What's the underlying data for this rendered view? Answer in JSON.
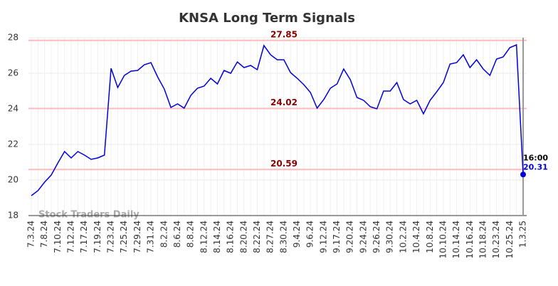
{
  "chart_data": {
    "type": "line",
    "title": "KNSA Long Term Signals",
    "categories": [
      "7.3.24",
      null,
      "7.8.24",
      null,
      "7.10.24",
      null,
      "7.12.24",
      null,
      "7.17.24",
      null,
      "7.19.24",
      null,
      "7.23.24",
      null,
      "7.25.24",
      null,
      "7.29.24",
      null,
      "7.31.24",
      null,
      "8.2.24",
      null,
      "8.6.24",
      null,
      "8.8.24",
      null,
      "8.12.24",
      null,
      "8.14.24",
      null,
      "8.16.24",
      null,
      "8.20.24",
      null,
      "8.22.24",
      null,
      "8.27.24",
      null,
      "8.30.24",
      null,
      "9.4.24",
      null,
      "9.6.24",
      null,
      "9.12.24",
      null,
      "9.17.24",
      null,
      "9.20.24",
      null,
      "9.24.24",
      null,
      "9.26.24",
      null,
      "9.30.24",
      null,
      "10.2.24",
      null,
      "10.4.24",
      null,
      "10.8.24",
      null,
      "10.10.24",
      null,
      "10.14.24",
      null,
      "10.16.24",
      null,
      "10.18.24",
      null,
      "10.23.24",
      null,
      "10.25.24",
      null,
      "1.3.25"
    ],
    "series": [
      {
        "name": "KNSA",
        "color": "#0000dd",
        "values": [
          19.12,
          19.4,
          19.88,
          20.28,
          20.96,
          21.6,
          21.24,
          21.6,
          21.4,
          21.16,
          21.24,
          21.4,
          26.28,
          25.2,
          25.88,
          26.12,
          26.16,
          26.48,
          26.6,
          25.8,
          25.12,
          24.08,
          24.28,
          24.04,
          24.76,
          25.16,
          25.28,
          25.72,
          25.4,
          26.16,
          26.0,
          26.64,
          26.32,
          26.44,
          26.2,
          27.56,
          27.04,
          26.76,
          26.76,
          26.04,
          25.72,
          25.36,
          24.92,
          24.04,
          24.52,
          25.16,
          25.4,
          26.24,
          25.64,
          24.64,
          24.48,
          24.12,
          24.0,
          25.0,
          25.0,
          25.48,
          24.52,
          24.28,
          24.48,
          23.72,
          24.48,
          24.96,
          25.48,
          26.52,
          26.6,
          27.04,
          26.32,
          26.76,
          26.24,
          25.88,
          26.8,
          26.92,
          27.44,
          27.6,
          20.31
        ]
      }
    ],
    "hlines": [
      27.85,
      24.02,
      20.59
    ],
    "hline_color": "#ffbbbb",
    "hline_label_color": "#880000",
    "last_time_label": "16:00",
    "watermark": "Stock Traders Daily",
    "ylim": [
      18,
      28
    ],
    "yticks": [
      18,
      20,
      22,
      24,
      26,
      28
    ],
    "grid": true
  }
}
